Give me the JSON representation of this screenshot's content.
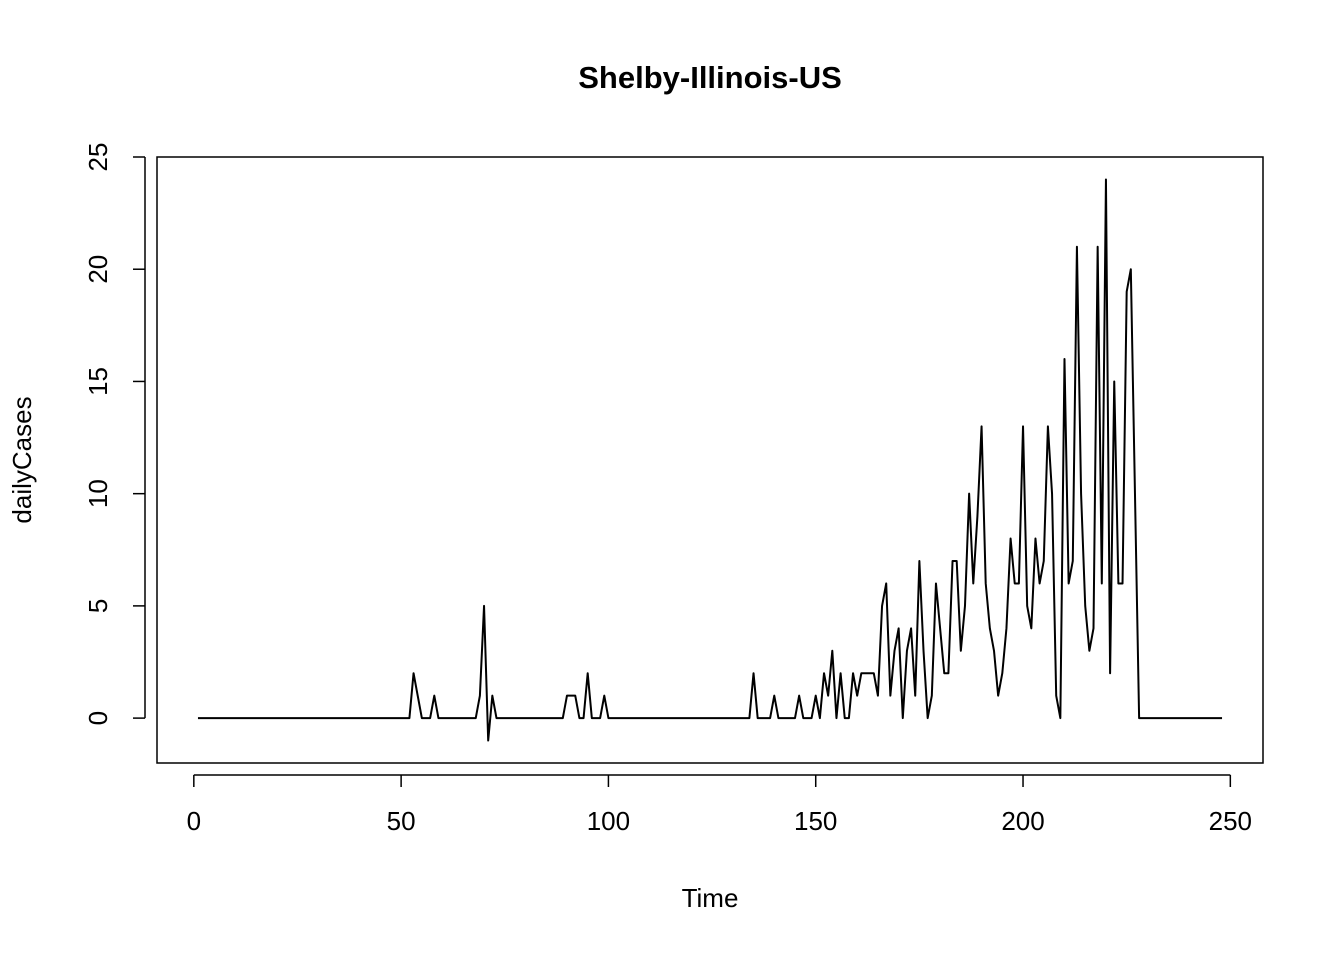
{
  "chart_data": {
    "type": "line",
    "title": "Shelby-Illinois-US",
    "x_label": "Time",
    "y_label": "dailyCases",
    "x": [
      1,
      2,
      3,
      4,
      5,
      6,
      7,
      8,
      9,
      10,
      11,
      12,
      13,
      14,
      15,
      16,
      17,
      18,
      19,
      20,
      21,
      22,
      23,
      24,
      25,
      26,
      27,
      28,
      29,
      30,
      31,
      32,
      33,
      34,
      35,
      36,
      37,
      38,
      39,
      40,
      41,
      42,
      43,
      44,
      45,
      46,
      47,
      48,
      49,
      50,
      51,
      52,
      53,
      54,
      55,
      56,
      57,
      58,
      59,
      60,
      61,
      62,
      63,
      64,
      65,
      66,
      67,
      68,
      69,
      70,
      71,
      72,
      73,
      74,
      75,
      76,
      77,
      78,
      79,
      80,
      81,
      82,
      83,
      84,
      85,
      86,
      87,
      88,
      89,
      90,
      91,
      92,
      93,
      94,
      95,
      96,
      97,
      98,
      99,
      100,
      101,
      102,
      103,
      104,
      105,
      106,
      107,
      108,
      109,
      110,
      111,
      112,
      113,
      114,
      115,
      116,
      117,
      118,
      119,
      120,
      121,
      122,
      123,
      124,
      125,
      126,
      127,
      128,
      129,
      130,
      131,
      132,
      133,
      134,
      135,
      136,
      137,
      138,
      139,
      140,
      141,
      142,
      143,
      144,
      145,
      146,
      147,
      148,
      149,
      150,
      151,
      152,
      153,
      154,
      155,
      156,
      157,
      158,
      159,
      160,
      161,
      162,
      163,
      164,
      165,
      166,
      167,
      168,
      169,
      170,
      171,
      172,
      173,
      174,
      175,
      176,
      177,
      178,
      179,
      180,
      181,
      182,
      183,
      184,
      185,
      186,
      187,
      188,
      189,
      190,
      191,
      192,
      193,
      194,
      195,
      196,
      197,
      198,
      199,
      200,
      201,
      202,
      203,
      204,
      205,
      206,
      207,
      208,
      209,
      210,
      211,
      212,
      213,
      214,
      215,
      216,
      217,
      218,
      219,
      220,
      221,
      222,
      223,
      224,
      225,
      226,
      227,
      228,
      229,
      230,
      231,
      232,
      233,
      234,
      235,
      236,
      237,
      238,
      239,
      240,
      241,
      242,
      243,
      244,
      245,
      246,
      247,
      248
    ],
    "values": [
      0,
      0,
      0,
      0,
      0,
      0,
      0,
      0,
      0,
      0,
      0,
      0,
      0,
      0,
      0,
      0,
      0,
      0,
      0,
      0,
      0,
      0,
      0,
      0,
      0,
      0,
      0,
      0,
      0,
      0,
      0,
      0,
      0,
      0,
      0,
      0,
      0,
      0,
      0,
      0,
      0,
      0,
      0,
      0,
      0,
      0,
      0,
      0,
      0,
      0,
      0,
      0,
      2,
      1,
      0,
      0,
      0,
      1,
      0,
      0,
      0,
      0,
      0,
      0,
      0,
      0,
      0,
      0,
      1,
      5,
      -1,
      1,
      0,
      0,
      0,
      0,
      0,
      0,
      0,
      0,
      0,
      0,
      0,
      0,
      0,
      0,
      0,
      0,
      0,
      1,
      1,
      1,
      0,
      0,
      2,
      0,
      0,
      0,
      1,
      0,
      0,
      0,
      0,
      0,
      0,
      0,
      0,
      0,
      0,
      0,
      0,
      0,
      0,
      0,
      0,
      0,
      0,
      0,
      0,
      0,
      0,
      0,
      0,
      0,
      0,
      0,
      0,
      0,
      0,
      0,
      0,
      0,
      0,
      0,
      2,
      0,
      0,
      0,
      0,
      1,
      0,
      0,
      0,
      0,
      0,
      1,
      0,
      0,
      0,
      1,
      0,
      2,
      1,
      3,
      0,
      2,
      0,
      0,
      2,
      1,
      2,
      2,
      2,
      2,
      1,
      5,
      6,
      1,
      3,
      4,
      0,
      3,
      4,
      1,
      7,
      3,
      0,
      1,
      6,
      4,
      2,
      2,
      7,
      7,
      3,
      5,
      10,
      6,
      9,
      13,
      6,
      4,
      3,
      1,
      2,
      4,
      8,
      6,
      6,
      13,
      5,
      4,
      8,
      6,
      7,
      13,
      10,
      1,
      0,
      16,
      6,
      7,
      21,
      10,
      5,
      3,
      4,
      21,
      6,
      24,
      2,
      15,
      6,
      6,
      19,
      20,
      10,
      0,
      0,
      0,
      0,
      0,
      0,
      0,
      0,
      0,
      0,
      0,
      0,
      0,
      0,
      0,
      0,
      0,
      0,
      0,
      0,
      0
    ],
    "color": "#000000",
    "xlim": [
      -8.88,
      257.88
    ],
    "ylim": [
      -2,
      25
    ],
    "xticks": [
      0,
      50,
      100,
      150,
      200,
      250
    ],
    "yticks": [
      0,
      5,
      10,
      15,
      20,
      25
    ]
  }
}
